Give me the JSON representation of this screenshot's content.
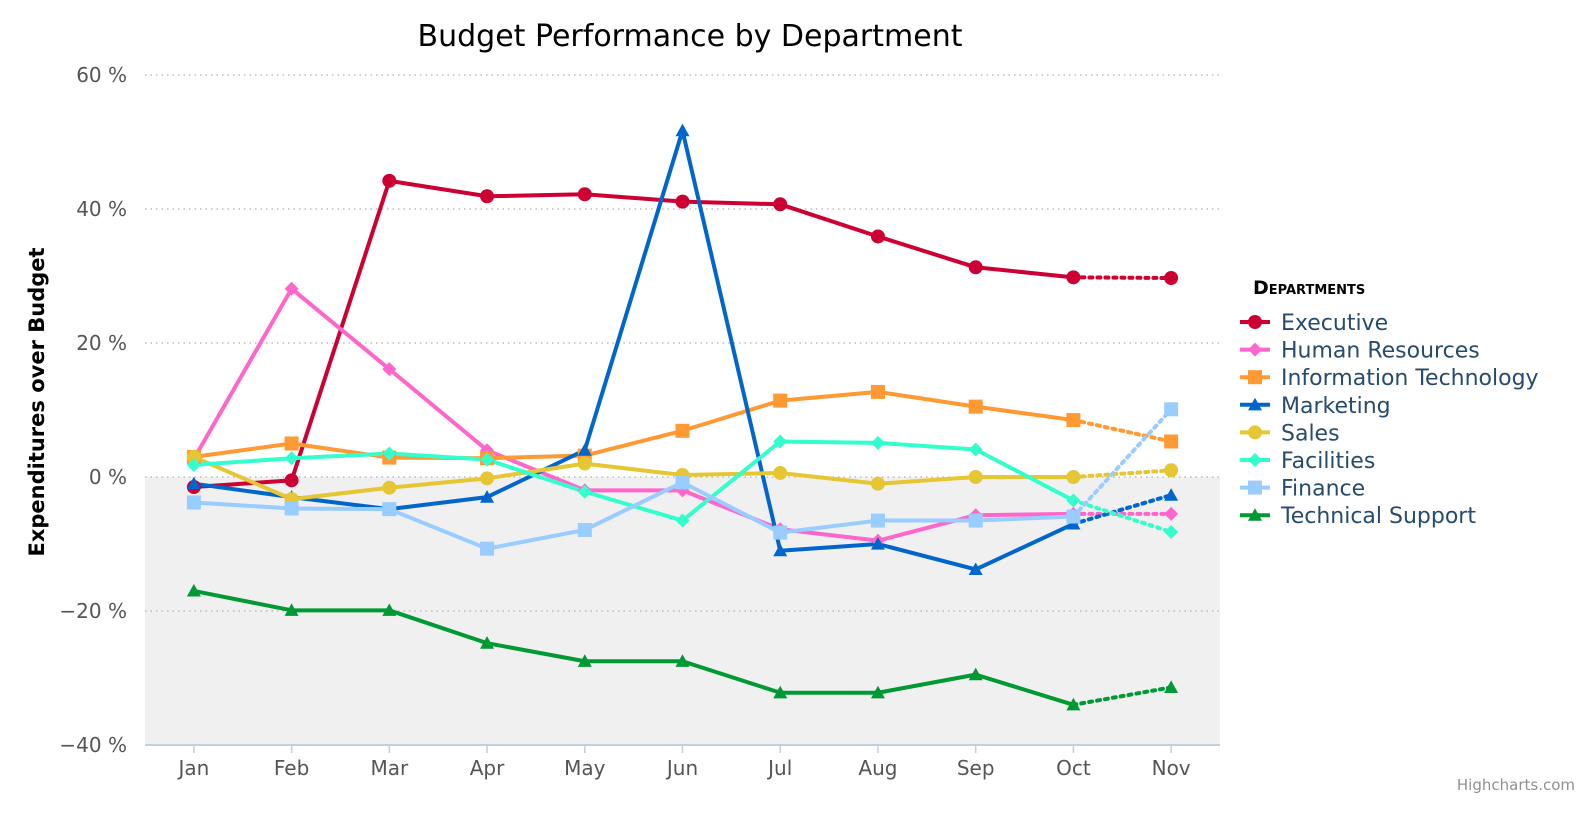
{
  "chart_data": {
    "type": "line",
    "title": "Budget Performance by Department",
    "ylabel": "Expenditures over Budget",
    "xlabel": "",
    "ylim": [
      -40,
      60
    ],
    "y_ticks": [
      60,
      40,
      20,
      0,
      -20,
      -40
    ],
    "y_tick_labels": [
      "60 %",
      "40 %",
      "20 %",
      "0 %",
      "−20 %",
      "−40 %"
    ],
    "categories": [
      "Jan",
      "Feb",
      "Mar",
      "Apr",
      "May",
      "Jun",
      "Jul",
      "Aug",
      "Sep",
      "Oct",
      "Nov"
    ],
    "dashed_segment": {
      "from": "Oct",
      "to": "Nov"
    },
    "negative_band": {
      "from": -40,
      "to": 0,
      "color": "#f0f0f0"
    },
    "grid": true,
    "legend": {
      "title": "Departments",
      "placement": "right"
    },
    "series": [
      {
        "name": "Executive",
        "color": "#cc0033",
        "marker": "circle",
        "values": [
          -1.5,
          -0.5,
          44.2,
          41.9,
          42.2,
          41.1,
          40.7,
          35.9,
          31.3,
          29.8,
          29.7
        ]
      },
      {
        "name": "Human Resources",
        "color": "#ff66cc",
        "marker": "diamond",
        "values": [
          2.7,
          28.1,
          16.1,
          4.0,
          -2.0,
          -2.0,
          -7.8,
          -9.5,
          -5.7,
          -5.5,
          -5.5
        ]
      },
      {
        "name": "Information Technology",
        "color": "#ff9933",
        "marker": "square",
        "values": [
          3.0,
          5.0,
          2.9,
          2.8,
          3.2,
          6.9,
          11.4,
          12.7,
          10.5,
          8.5,
          5.3
        ]
      },
      {
        "name": "Marketing",
        "color": "#0066cc",
        "marker": "triangle",
        "values": [
          -1.0,
          -3.0,
          -4.8,
          -3.0,
          4.0,
          51.7,
          -11.0,
          -10.0,
          -13.8,
          -7.0,
          -2.7
        ]
      },
      {
        "name": "Sales",
        "color": "#e6c633",
        "marker": "circle",
        "values": [
          3.0,
          -3.3,
          -1.6,
          -0.2,
          2.0,
          0.3,
          0.6,
          -1.0,
          0.0,
          0.0,
          1.0
        ]
      },
      {
        "name": "Facilities",
        "color": "#33ffcc",
        "marker": "diamond",
        "values": [
          1.8,
          2.8,
          3.5,
          2.6,
          -2.2,
          -6.5,
          5.3,
          5.1,
          4.1,
          -3.5,
          -8.2
        ]
      },
      {
        "name": "Finance",
        "color": "#99ccff",
        "marker": "square",
        "values": [
          -3.8,
          -4.7,
          -4.8,
          -10.7,
          -7.9,
          -0.8,
          -8.3,
          -6.5,
          -6.5,
          -5.9,
          10.1
        ]
      },
      {
        "name": "Technical Support",
        "color": "#009933",
        "marker": "triangle",
        "values": [
          -17.0,
          -19.9,
          -19.9,
          -24.8,
          -27.5,
          -27.5,
          -32.2,
          -32.2,
          -29.5,
          -34.0,
          -31.4
        ]
      }
    ]
  },
  "credits": "Highcharts.com"
}
